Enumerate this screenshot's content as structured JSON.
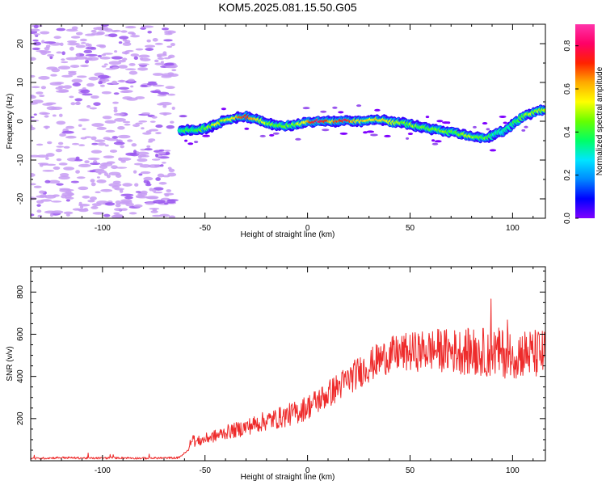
{
  "title": "KOM5.2025.081.15.50.G05",
  "colors": {
    "snr_line": "#ee2b2b",
    "axis": "#000000",
    "speckle": "#c79cf3",
    "speckle_dark": "#9955ee",
    "colorbar_stops": [
      "#7f00ff",
      "#0000ff",
      "#0088ff",
      "#00e5ff",
      "#00ff66",
      "#66ff00",
      "#ffff00",
      "#ffaa00",
      "#ff2200",
      "#ff0066",
      "#ff33aa"
    ]
  },
  "chart_data": [
    {
      "type": "heatmap",
      "title": "KOM5.2025.081.15.50.G05",
      "xlabel": "Height of straight line (km)",
      "ylabel": "Frequency (Hz)",
      "xlim": [
        -135,
        116
      ],
      "ylim": [
        -25,
        25
      ],
      "xticks": [
        -100,
        -50,
        0,
        50,
        100
      ],
      "yticks": [
        -20,
        -10,
        0,
        10,
        20
      ],
      "noise_region_x": [
        -135,
        -65
      ],
      "ridge": {
        "description": "Doppler frequency trace",
        "x": [
          -62,
          -55,
          -48,
          -42,
          -36,
          -30,
          -24,
          -18,
          -12,
          -6,
          0,
          6,
          12,
          18,
          24,
          30,
          36,
          42,
          48,
          54,
          60,
          66,
          72,
          78,
          84,
          88,
          92,
          96,
          100,
          104,
          108,
          112,
          116
        ],
        "freq": [
          -2.3,
          -2.4,
          -1.5,
          -0.2,
          0.8,
          1.2,
          0.4,
          -0.8,
          -1.2,
          -0.9,
          -0.3,
          0.1,
          0.0,
          0.1,
          0.0,
          0.2,
          0.4,
          -0.3,
          -0.6,
          -1.4,
          -1.9,
          -2.5,
          -3.0,
          -3.6,
          -4.1,
          -4.3,
          -3.2,
          -2.6,
          -0.9,
          0.8,
          1.8,
          2.5,
          3.0
        ],
        "amplitude": [
          0.35,
          0.4,
          0.45,
          0.5,
          0.55,
          0.75,
          0.55,
          0.45,
          0.4,
          0.45,
          0.6,
          0.85,
          0.6,
          0.8,
          0.55,
          0.6,
          0.55,
          0.5,
          0.45,
          0.45,
          0.4,
          0.45,
          0.4,
          0.5,
          0.45,
          0.4,
          0.3,
          0.3,
          0.35,
          0.4,
          0.45,
          0.5,
          0.5
        ]
      },
      "colorbar": {
        "label": "Normalized spectral amplitude",
        "range": [
          0.0,
          0.9
        ],
        "ticks": [
          "0.0",
          "0.2",
          "0.4",
          "0.6",
          "0.8"
        ]
      }
    },
    {
      "type": "line",
      "xlabel": "Height of straight line (km)",
      "ylabel": "SNR (v/v)",
      "xlim": [
        -135,
        116
      ],
      "ylim": [
        0,
        920
      ],
      "xticks": [
        -100,
        -50,
        0,
        50,
        100
      ],
      "yticks": [
        200,
        400,
        600,
        800
      ],
      "series": [
        {
          "x": [
            -135,
            -120,
            -105,
            -90,
            -80,
            -70,
            -63,
            -58,
            -56,
            -55,
            -52,
            -48,
            -44,
            -40,
            -35,
            -30,
            -25,
            -20,
            -15,
            -10,
            -5,
            0,
            5,
            10,
            15,
            20,
            25,
            30,
            35,
            40,
            45,
            50,
            55,
            60,
            65,
            70,
            75,
            80,
            85,
            90,
            95,
            100,
            105,
            110,
            116
          ],
          "y": [
            10,
            15,
            12,
            14,
            12,
            13,
            14,
            50,
            120,
            90,
            95,
            110,
            120,
            135,
            145,
            160,
            175,
            190,
            200,
            215,
            230,
            255,
            285,
            315,
            350,
            385,
            420,
            450,
            480,
            500,
            510,
            515,
            520,
            525,
            525,
            520,
            520,
            515,
            515,
            515,
            510,
            510,
            510,
            505,
            505
          ]
        }
      ]
    }
  ]
}
